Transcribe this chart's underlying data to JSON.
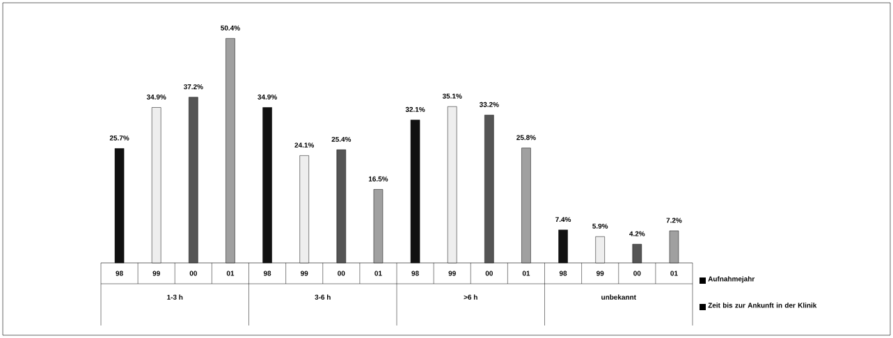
{
  "chart_data": {
    "type": "bar",
    "categories": [
      "1-3 h",
      "3-6 h",
      ">6 h",
      "unbekannt"
    ],
    "series": [
      {
        "name": "98",
        "color": "#111111",
        "values": [
          25.7,
          34.9,
          32.1,
          7.4
        ],
        "value_labels": [
          "25.7%",
          "34.9%",
          "32.1%",
          "7.4%"
        ]
      },
      {
        "name": "99",
        "color": "#eeeeee",
        "values": [
          34.9,
          24.1,
          35.1,
          5.9
        ],
        "value_labels": [
          "34.9%",
          "24.1%",
          "35.1%",
          "5.9%"
        ]
      },
      {
        "name": "00",
        "color": "#555555",
        "values": [
          37.2,
          25.4,
          33.2,
          4.2
        ],
        "value_labels": [
          "37.2%",
          "25.4%",
          "33.2%",
          "4.2%"
        ]
      },
      {
        "name": "01",
        "color": "#a0a0a0",
        "values": [
          50.4,
          16.5,
          25.8,
          7.2
        ],
        "value_labels": [
          "50.4%",
          "16.5%",
          "25.8%",
          "7.2%"
        ]
      }
    ],
    "annotations": [
      "Aufnahmejahr",
      "Zeit bis zur Ankunft in der Klinik"
    ]
  }
}
